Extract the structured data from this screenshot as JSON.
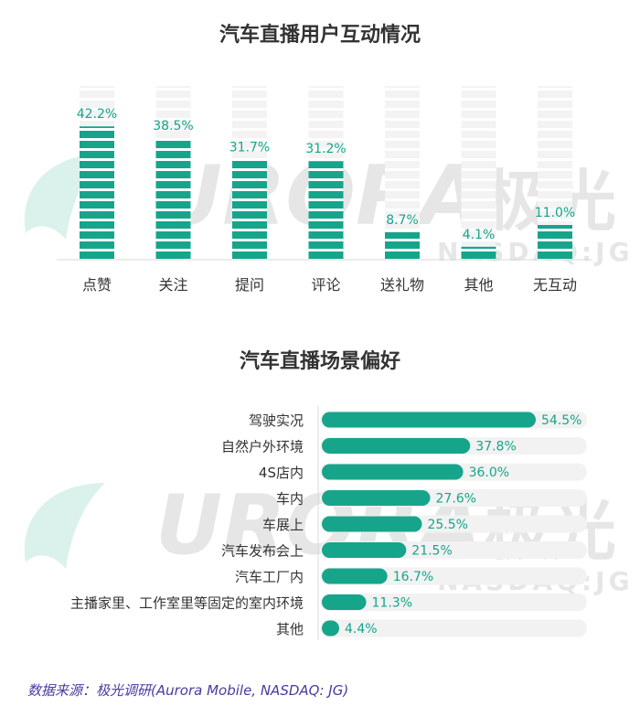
{
  "chart_data": [
    {
      "type": "bar",
      "title": "汽车直播用户互动情况",
      "categories": [
        "点赞",
        "关注",
        "提问",
        "评论",
        "送礼物",
        "其他",
        "无互动"
      ],
      "values": [
        42.2,
        38.5,
        31.7,
        31.2,
        8.7,
        4.1,
        11.0
      ],
      "value_labels": [
        "42.2%",
        "38.5%",
        "31.7%",
        "31.2%",
        "8.7%",
        "4.1%",
        "11.0%"
      ],
      "ylim": [
        0,
        55
      ],
      "grid": false,
      "bar_color": "#16a58b"
    },
    {
      "type": "bar",
      "orientation": "horizontal",
      "title": "汽车直播场景偏好",
      "categories": [
        "驾驶实况",
        "自然户外环境",
        "4S店内",
        "车内",
        "车展上",
        "汽车发布会上",
        "汽车工厂内",
        "主播家里、工作室里等固定的室内环境",
        "其他"
      ],
      "values": [
        54.5,
        37.8,
        36.0,
        27.6,
        25.5,
        21.5,
        16.7,
        11.3,
        4.4
      ],
      "value_labels": [
        "54.5%",
        "37.8%",
        "36.0%",
        "27.6%",
        "25.5%",
        "21.5%",
        "16.7%",
        "11.3%",
        "4.4%"
      ],
      "xlim": [
        0,
        60
      ],
      "grid": false,
      "bar_color": "#16a58b"
    }
  ],
  "watermark": {
    "brand": "URORA",
    "brand_cn": "极光",
    "ticker": "NASDAQ:JG"
  },
  "source": "数据来源：极光调研(Aurora Mobile, NASDAQ: JG)",
  "colors": {
    "accent": "#16a58b",
    "track": "#f2f2f2",
    "watermark": "#e6e6e6"
  }
}
